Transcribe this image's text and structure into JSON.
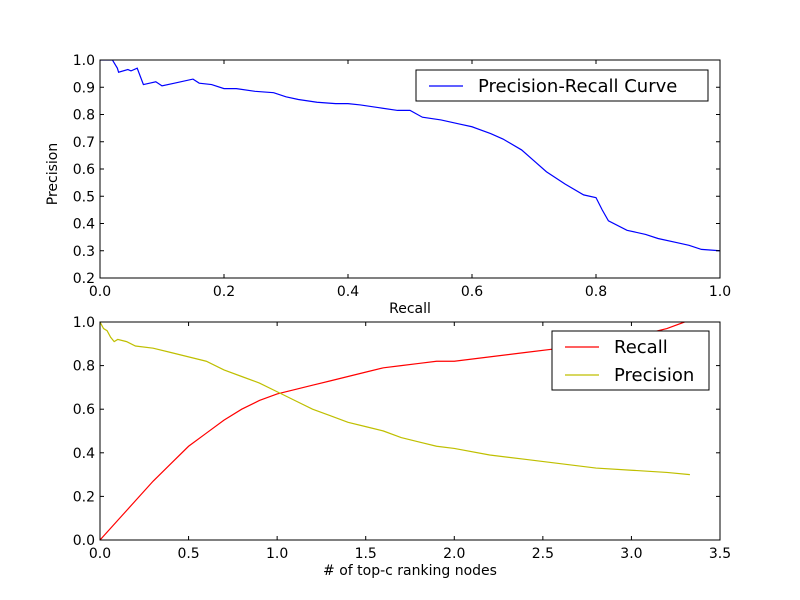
{
  "chart_data": [
    {
      "type": "line",
      "xlabel": "Recall",
      "ylabel": "Precision",
      "xlim": [
        0.0,
        1.0
      ],
      "ylim": [
        0.2,
        1.0
      ],
      "xticks": [
        "0.0",
        "0.2",
        "0.4",
        "0.6",
        "0.8",
        "1.0"
      ],
      "yticks": [
        "0.2",
        "0.3",
        "0.4",
        "0.5",
        "0.6",
        "0.7",
        "0.8",
        "0.9",
        "1.0"
      ],
      "legend_position": "top-right",
      "grid": false,
      "series": [
        {
          "name": "Precision-Recall Curve",
          "color": "#0000ff",
          "x": [
            0.0,
            0.02,
            0.028,
            0.03,
            0.045,
            0.05,
            0.06,
            0.065,
            0.07,
            0.08,
            0.09,
            0.1,
            0.12,
            0.15,
            0.16,
            0.18,
            0.2,
            0.22,
            0.25,
            0.28,
            0.3,
            0.32,
            0.35,
            0.38,
            0.4,
            0.42,
            0.45,
            0.48,
            0.5,
            0.52,
            0.55,
            0.58,
            0.6,
            0.63,
            0.65,
            0.68,
            0.7,
            0.72,
            0.75,
            0.78,
            0.8,
            0.81,
            0.82,
            0.85,
            0.88,
            0.9,
            0.93,
            0.95,
            0.97,
            1.0
          ],
          "y": [
            1.0,
            1.0,
            0.97,
            0.955,
            0.965,
            0.96,
            0.97,
            0.94,
            0.91,
            0.915,
            0.92,
            0.905,
            0.915,
            0.93,
            0.915,
            0.91,
            0.895,
            0.895,
            0.885,
            0.88,
            0.865,
            0.855,
            0.845,
            0.84,
            0.84,
            0.835,
            0.825,
            0.815,
            0.815,
            0.79,
            0.78,
            0.765,
            0.755,
            0.73,
            0.71,
            0.67,
            0.63,
            0.59,
            0.545,
            0.505,
            0.495,
            0.45,
            0.41,
            0.375,
            0.36,
            0.345,
            0.33,
            0.32,
            0.305,
            0.3
          ]
        }
      ]
    },
    {
      "type": "line",
      "xlabel": "# of top-c ranking nodes",
      "ylabel": "",
      "xlim": [
        0.0,
        3.5
      ],
      "ylim": [
        0.0,
        1.0
      ],
      "xticks": [
        "0.0",
        "0.5",
        "1.0",
        "1.5",
        "2.0",
        "2.5",
        "3.0",
        "3.5"
      ],
      "yticks": [
        "0.0",
        "0.2",
        "0.4",
        "0.6",
        "0.8",
        "1.0"
      ],
      "legend_position": "top-right",
      "grid": false,
      "series": [
        {
          "name": "Recall",
          "color": "#ff0000",
          "x": [
            0.0,
            0.1,
            0.2,
            0.3,
            0.4,
            0.5,
            0.6,
            0.7,
            0.8,
            0.9,
            1.0,
            1.1,
            1.2,
            1.3,
            1.4,
            1.5,
            1.6,
            1.7,
            1.8,
            1.9,
            2.0,
            2.2,
            2.4,
            2.6,
            2.8,
            3.0,
            3.2,
            3.3
          ],
          "y": [
            0.0,
            0.09,
            0.18,
            0.27,
            0.35,
            0.43,
            0.49,
            0.55,
            0.6,
            0.64,
            0.67,
            0.69,
            0.71,
            0.73,
            0.75,
            0.77,
            0.79,
            0.8,
            0.81,
            0.82,
            0.82,
            0.84,
            0.86,
            0.88,
            0.9,
            0.93,
            0.97,
            1.0
          ]
        },
        {
          "name": "Precision",
          "color": "#bfbf00",
          "x": [
            0.0,
            0.02,
            0.04,
            0.06,
            0.08,
            0.1,
            0.15,
            0.2,
            0.3,
            0.4,
            0.5,
            0.6,
            0.7,
            0.8,
            0.9,
            1.0,
            1.1,
            1.2,
            1.3,
            1.4,
            1.5,
            1.6,
            1.7,
            1.8,
            1.9,
            2.0,
            2.2,
            2.4,
            2.6,
            2.8,
            3.0,
            3.2,
            3.33
          ],
          "y": [
            1.0,
            0.97,
            0.96,
            0.93,
            0.91,
            0.92,
            0.91,
            0.89,
            0.88,
            0.86,
            0.84,
            0.82,
            0.78,
            0.75,
            0.72,
            0.68,
            0.64,
            0.6,
            0.57,
            0.54,
            0.52,
            0.5,
            0.47,
            0.45,
            0.43,
            0.42,
            0.39,
            0.37,
            0.35,
            0.33,
            0.32,
            0.31,
            0.3
          ]
        }
      ]
    }
  ]
}
